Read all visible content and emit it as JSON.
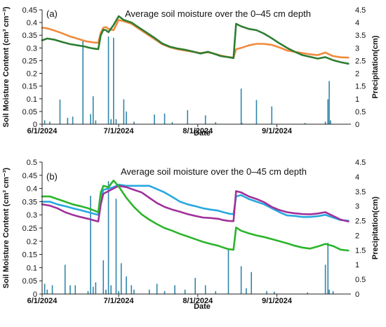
{
  "chart_data": [
    {
      "type": "line",
      "panel_label": "(a)",
      "title": "Average soil moisture over the 0–45 cm depth",
      "xlabel": "Date",
      "ylabel": "Soil Moisture Content (cm³ cm⁻³)",
      "y2label": "Precipitation(cm)",
      "ylim": [
        0,
        0.45
      ],
      "y2lim": [
        0,
        4.5
      ],
      "yticks": [
        "0",
        "0.05",
        "0.1",
        "0.15",
        "0.2",
        "0.25",
        "0.3",
        "0.35",
        "0.4",
        "0.45"
      ],
      "y2ticks": [
        "0",
        "0.5",
        "1",
        "1.5",
        "2",
        "2.5",
        "3",
        "3.5",
        "4",
        "4.5"
      ],
      "xticks": [
        {
          "label": "6/1/2024",
          "day": 0
        },
        {
          "label": "7/1/2024",
          "day": 30
        },
        {
          "label": "8/1/2024",
          "day": 61
        },
        {
          "label": "9/1/2024",
          "day": 92
        }
      ],
      "xrange": [
        0,
        121
      ],
      "series": [
        {
          "color": "#f28a3c",
          "x": [
            0,
            2,
            5,
            8,
            11,
            14,
            17,
            18,
            20,
            22,
            23,
            24,
            25,
            26,
            28,
            30,
            32,
            35,
            38,
            41,
            44,
            47,
            50,
            53,
            56,
            59,
            62,
            65,
            68,
            70,
            72,
            74,
            75,
            76,
            78,
            81,
            84,
            87,
            90,
            93,
            96,
            99,
            102,
            105,
            108,
            111,
            114,
            117,
            120
          ],
          "y": [
            0.38,
            0.377,
            0.368,
            0.357,
            0.345,
            0.336,
            0.327,
            0.325,
            0.322,
            0.32,
            0.36,
            0.38,
            0.382,
            0.375,
            0.37,
            0.41,
            0.405,
            0.395,
            0.375,
            0.355,
            0.335,
            0.315,
            0.303,
            0.295,
            0.29,
            0.285,
            0.28,
            0.283,
            0.276,
            0.27,
            0.266,
            0.263,
            0.262,
            0.295,
            0.3,
            0.31,
            0.316,
            0.316,
            0.312,
            0.302,
            0.29,
            0.285,
            0.28,
            0.275,
            0.272,
            0.282,
            0.268,
            0.263,
            0.262
          ]
        },
        {
          "color": "#2e7d32",
          "x": [
            0,
            2,
            5,
            8,
            11,
            14,
            17,
            18,
            20,
            22,
            23,
            24,
            25,
            26,
            28,
            30,
            32,
            35,
            38,
            41,
            44,
            47,
            50,
            53,
            56,
            59,
            62,
            65,
            68,
            70,
            72,
            74,
            75,
            76,
            78,
            81,
            84,
            87,
            90,
            93,
            96,
            99,
            102,
            105,
            108,
            111,
            114,
            117,
            120
          ],
          "y": [
            0.33,
            0.337,
            0.332,
            0.323,
            0.315,
            0.31,
            0.305,
            0.302,
            0.298,
            0.295,
            0.35,
            0.372,
            0.37,
            0.362,
            0.39,
            0.425,
            0.41,
            0.4,
            0.38,
            0.36,
            0.34,
            0.318,
            0.305,
            0.298,
            0.293,
            0.286,
            0.278,
            0.285,
            0.275,
            0.268,
            0.265,
            0.262,
            0.26,
            0.395,
            0.385,
            0.375,
            0.37,
            0.356,
            0.338,
            0.318,
            0.3,
            0.285,
            0.272,
            0.265,
            0.258,
            0.264,
            0.252,
            0.244,
            0.238
          ]
        }
      ],
      "precipitation": {
        "color": "#2e86ab",
        "day": [
          1,
          3,
          7,
          10,
          12,
          16,
          19,
          20,
          21,
          26,
          27,
          28,
          29,
          32,
          33,
          36,
          44,
          48,
          51,
          57,
          64,
          68,
          78,
          78.3,
          84,
          90,
          103,
          111,
          112,
          112.5,
          113
        ],
        "cm": [
          0.15,
          0.1,
          0.97,
          0.25,
          0.3,
          3.3,
          0.4,
          1.1,
          0.15,
          3.45,
          0.2,
          3.4,
          0.2,
          0.98,
          0.5,
          0.1,
          0.38,
          0.42,
          0.08,
          0.55,
          0.35,
          0.08,
          1.4,
          0.05,
          0.95,
          0.7,
          0.05,
          0.1,
          0.98,
          1.7,
          0.15
        ]
      }
    },
    {
      "type": "line",
      "panel_label": "(b)",
      "title": "Average soil moisture over the 0–45 cm depth",
      "xlabel": "Date",
      "ylabel": "Soil Moisture Content (cm³ cm⁻³)",
      "y2label": "Precipitation(cm)",
      "ylim": [
        0,
        0.5
      ],
      "y2lim": [
        0,
        4.5
      ],
      "yticks": [
        "0",
        "0.05",
        "0.1",
        "0.15",
        "0.2",
        "0.25",
        "0.3",
        "0.35",
        "0.4",
        "0.45",
        "0.5"
      ],
      "y2ticks": [
        "0",
        "0.5",
        "1",
        "1.5",
        "2",
        "2.5",
        "3",
        "3.5",
        "4",
        "4.5"
      ],
      "xticks": [
        {
          "label": "6/1/2024",
          "day": 0
        },
        {
          "label": "7/1/2024",
          "day": 30
        },
        {
          "label": "8/1/2024",
          "day": 61
        },
        {
          "label": "9/1/2024",
          "day": 92
        }
      ],
      "xrange": [
        0,
        121
      ],
      "series": [
        {
          "color": "#29a8df",
          "x": [
            0,
            3,
            6,
            9,
            12,
            15,
            18,
            20,
            22,
            23,
            24,
            26,
            28,
            30,
            33,
            36,
            39,
            42,
            45,
            48,
            51,
            54,
            57,
            60,
            63,
            66,
            69,
            71,
            73,
            75,
            76,
            78,
            81,
            84,
            87,
            90,
            93,
            96,
            99,
            102,
            105,
            108,
            111,
            114,
            117,
            120
          ],
          "y": [
            0.35,
            0.35,
            0.34,
            0.333,
            0.325,
            0.318,
            0.31,
            0.305,
            0.3,
            0.36,
            0.395,
            0.4,
            0.405,
            0.415,
            0.41,
            0.41,
            0.41,
            0.41,
            0.398,
            0.385,
            0.368,
            0.35,
            0.34,
            0.333,
            0.325,
            0.32,
            0.316,
            0.31,
            0.305,
            0.302,
            0.37,
            0.375,
            0.36,
            0.35,
            0.34,
            0.325,
            0.31,
            0.298,
            0.296,
            0.292,
            0.292,
            0.295,
            0.3,
            0.29,
            0.28,
            0.278
          ]
        },
        {
          "color": "#a0319b",
          "x": [
            0,
            3,
            6,
            9,
            12,
            15,
            18,
            20,
            22,
            23,
            24,
            26,
            28,
            30,
            33,
            36,
            39,
            42,
            45,
            48,
            51,
            54,
            57,
            60,
            63,
            66,
            69,
            71,
            73,
            75,
            76,
            78,
            81,
            84,
            87,
            90,
            93,
            96,
            99,
            102,
            105,
            108,
            111,
            114,
            117,
            120
          ],
          "y": [
            0.34,
            0.335,
            0.325,
            0.31,
            0.3,
            0.292,
            0.285,
            0.28,
            0.275,
            0.34,
            0.38,
            0.39,
            0.4,
            0.41,
            0.405,
            0.395,
            0.385,
            0.365,
            0.345,
            0.33,
            0.32,
            0.312,
            0.303,
            0.296,
            0.29,
            0.288,
            0.285,
            0.28,
            0.277,
            0.276,
            0.39,
            0.385,
            0.37,
            0.36,
            0.348,
            0.33,
            0.318,
            0.31,
            0.306,
            0.303,
            0.302,
            0.305,
            0.31,
            0.296,
            0.282,
            0.275
          ]
        },
        {
          "color": "#2bb52b",
          "x": [
            0,
            3,
            6,
            9,
            12,
            15,
            18,
            20,
            22,
            23,
            24,
            26,
            28,
            30,
            33,
            36,
            39,
            42,
            45,
            48,
            51,
            54,
            57,
            60,
            63,
            66,
            69,
            71,
            73,
            75,
            76,
            78,
            81,
            84,
            87,
            90,
            93,
            96,
            99,
            102,
            105,
            108,
            111,
            114,
            117,
            120
          ],
          "y": [
            0.37,
            0.37,
            0.36,
            0.35,
            0.34,
            0.333,
            0.325,
            0.318,
            0.31,
            0.385,
            0.41,
            0.405,
            0.43,
            0.408,
            0.365,
            0.33,
            0.302,
            0.282,
            0.265,
            0.25,
            0.24,
            0.228,
            0.218,
            0.208,
            0.198,
            0.19,
            0.183,
            0.176,
            0.17,
            0.168,
            0.252,
            0.24,
            0.23,
            0.222,
            0.216,
            0.208,
            0.2,
            0.192,
            0.183,
            0.176,
            0.172,
            0.18,
            0.19,
            0.182,
            0.168,
            0.165
          ]
        }
      ],
      "precipitation": {
        "color": "#2e86ab",
        "day": [
          1,
          2,
          4,
          9,
          11,
          13,
          18,
          19,
          20,
          21,
          24,
          25,
          26,
          27,
          29,
          30,
          31,
          33,
          35,
          36,
          42,
          45,
          48,
          52,
          56,
          60,
          64,
          68,
          73,
          78,
          80,
          82,
          88,
          91,
          104,
          111,
          112,
          112.5,
          114
        ],
        "cm": [
          0.35,
          0.15,
          0.3,
          1.0,
          0.3,
          0.3,
          0.1,
          3.35,
          0.25,
          0.4,
          1.15,
          0.15,
          3.85,
          0.3,
          3.25,
          0.1,
          1.05,
          0.6,
          0.3,
          0.15,
          0.15,
          0.35,
          0.1,
          0.3,
          0.15,
          0.55,
          0.3,
          0.1,
          1.55,
          0.95,
          0.2,
          0.75,
          0.1,
          0.08,
          0.05,
          1.0,
          1.75,
          0.15,
          0.1
        ]
      }
    }
  ]
}
